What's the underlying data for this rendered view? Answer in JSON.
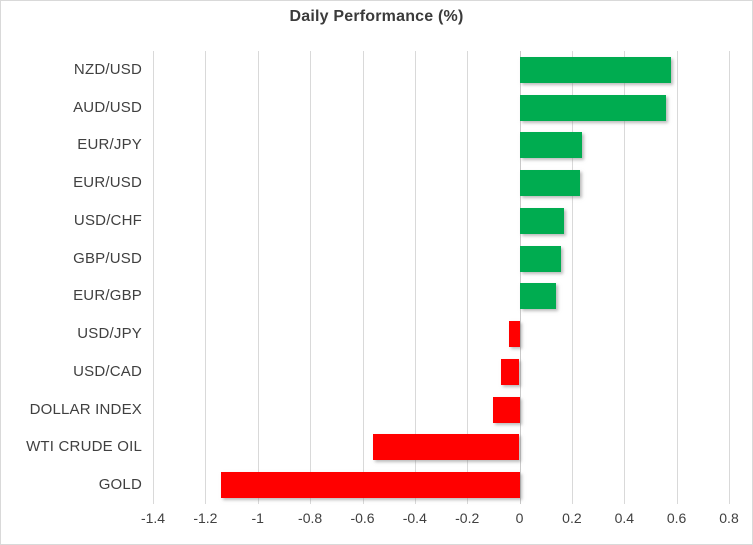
{
  "chart_data": {
    "type": "bar",
    "orientation": "horizontal",
    "title": "Daily Performance (%)",
    "categories": [
      "NZD/USD",
      "AUD/USD",
      "EUR/JPY",
      "EUR/USD",
      "USD/CHF",
      "GBP/USD",
      "EUR/GBP",
      "USD/JPY",
      "USD/CAD",
      "DOLLAR INDEX",
      "WTI CRUDE OIL",
      "GOLD"
    ],
    "values": [
      0.58,
      0.56,
      0.24,
      0.23,
      0.17,
      0.16,
      0.14,
      -0.04,
      -0.07,
      -0.1,
      -0.56,
      -1.14
    ],
    "xlabel": "",
    "ylabel": "",
    "xlim": [
      -1.4,
      0.8
    ],
    "xticks": {
      "values": [
        -1.4,
        -1.2,
        -1.0,
        -0.8,
        -0.6,
        -0.4,
        -0.2,
        0,
        0.2,
        0.4,
        0.6,
        0.8
      ],
      "labels": [
        "-1.4",
        "-1.2",
        "-1",
        "-0.8",
        "-0.6",
        "-0.4",
        "-0.2",
        "0",
        "0.2",
        "0.4",
        "0.6",
        "0.8"
      ]
    },
    "grid": true,
    "legend": "none",
    "colors": {
      "positive": "#00AC50",
      "negative": "#FF0000",
      "gridline": "#D9D9D9",
      "axis_line": "#C9C9C9",
      "text": "#404040",
      "title_text": "#3B3B3B"
    }
  }
}
